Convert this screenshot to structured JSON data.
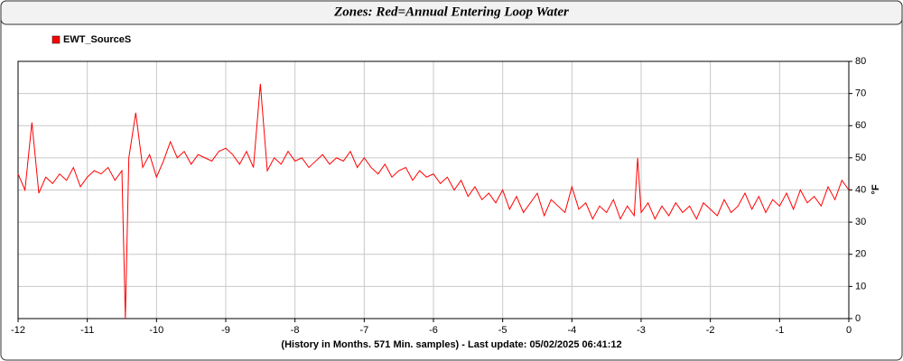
{
  "chart_data": {
    "type": "line",
    "title": "Zones: Red=Annual Entering Loop Water",
    "x_label": "(History in Months. 571 Min. samples) - Last update: 05/02/2025 06:41:12",
    "y_label": "°F",
    "legend": "top-left",
    "grid": true,
    "xlim": [
      -12,
      0
    ],
    "xticks": [
      -12,
      -11,
      -10,
      -9,
      -8,
      -7,
      -6,
      -5,
      -4,
      -3,
      -2,
      -1,
      0
    ],
    "ylim": [
      0,
      80
    ],
    "yticks": [
      0,
      10,
      20,
      30,
      40,
      50,
      60,
      70,
      80
    ],
    "x": [
      -12,
      -11.9,
      -11.8,
      -11.7,
      -11.6,
      -11.5,
      -11.4,
      -11.3,
      -11.2,
      -11.1,
      -11,
      -10.9,
      -10.8,
      -10.7,
      -10.6,
      -10.5,
      -10.45,
      -10.4,
      -10.3,
      -10.2,
      -10.1,
      -10,
      -9.9,
      -9.8,
      -9.7,
      -9.6,
      -9.5,
      -9.4,
      -9.3,
      -9.2,
      -9.1,
      -9,
      -8.9,
      -8.8,
      -8.7,
      -8.6,
      -8.5,
      -8.4,
      -8.3,
      -8.2,
      -8.1,
      -8,
      -7.9,
      -7.8,
      -7.7,
      -7.6,
      -7.5,
      -7.4,
      -7.3,
      -7.2,
      -7.1,
      -7,
      -6.9,
      -6.8,
      -6.7,
      -6.6,
      -6.5,
      -6.4,
      -6.3,
      -6.2,
      -6.1,
      -6,
      -5.9,
      -5.8,
      -5.7,
      -5.6,
      -5.5,
      -5.4,
      -5.3,
      -5.2,
      -5.1,
      -5,
      -4.9,
      -4.8,
      -4.7,
      -4.6,
      -4.5,
      -4.4,
      -4.3,
      -4.2,
      -4.1,
      -4,
      -3.9,
      -3.8,
      -3.7,
      -3.6,
      -3.5,
      -3.4,
      -3.3,
      -3.2,
      -3.1,
      -3.05,
      -3,
      -2.9,
      -2.8,
      -2.7,
      -2.6,
      -2.5,
      -2.4,
      -2.3,
      -2.2,
      -2.1,
      -2,
      -1.9,
      -1.8,
      -1.7,
      -1.6,
      -1.5,
      -1.4,
      -1.3,
      -1.2,
      -1.1,
      -1,
      -0.9,
      -0.8,
      -0.7,
      -0.6,
      -0.5,
      -0.4,
      -0.3,
      -0.2,
      -0.1,
      0
    ],
    "series": [
      {
        "name": "EWT_SourceS",
        "color": "#ff0000",
        "values": [
          45,
          40,
          61,
          39,
          44,
          42,
          45,
          43,
          47,
          41,
          44,
          46,
          45,
          47,
          43,
          46,
          0,
          50,
          64,
          47,
          51,
          44,
          49,
          55,
          50,
          52,
          48,
          51,
          50,
          49,
          52,
          53,
          51,
          48,
          52,
          47,
          73,
          46,
          50,
          48,
          52,
          49,
          50,
          47,
          49,
          51,
          48,
          50,
          49,
          52,
          47,
          50,
          47,
          45,
          48,
          44,
          46,
          47,
          43,
          46,
          44,
          45,
          42,
          44,
          40,
          43,
          38,
          41,
          37,
          39,
          36,
          40,
          34,
          38,
          33,
          36,
          39,
          32,
          37,
          35,
          33,
          41,
          34,
          36,
          31,
          35,
          33,
          37,
          31,
          35,
          32,
          50,
          33,
          36,
          31,
          35,
          32,
          36,
          33,
          35,
          31,
          36,
          34,
          32,
          37,
          33,
          35,
          39,
          34,
          38,
          33,
          37,
          35,
          39,
          34,
          40,
          36,
          38,
          35,
          41,
          37,
          43,
          40
        ]
      }
    ]
  }
}
